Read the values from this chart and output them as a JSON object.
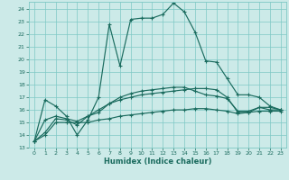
{
  "xlabel": "Humidex (Indice chaleur)",
  "bg_color": "#cceae8",
  "grid_color": "#7ec8c5",
  "line_color": "#1a6b5e",
  "xlim": [
    -0.5,
    23.5
  ],
  "ylim": [
    13,
    24.6
  ],
  "yticks": [
    13,
    14,
    15,
    16,
    17,
    18,
    19,
    20,
    21,
    22,
    23,
    24
  ],
  "xticks": [
    0,
    1,
    2,
    3,
    4,
    5,
    6,
    7,
    8,
    9,
    10,
    11,
    12,
    13,
    14,
    15,
    16,
    17,
    18,
    19,
    20,
    21,
    22,
    23
  ],
  "line1_x": [
    0,
    1,
    2,
    3,
    4,
    5,
    6,
    7,
    8,
    9,
    10,
    11,
    12,
    13,
    14,
    15,
    16,
    17,
    18,
    19,
    20,
    21,
    22,
    23
  ],
  "line1_y": [
    13.5,
    16.8,
    16.3,
    15.5,
    14.0,
    15.2,
    17.0,
    22.8,
    19.5,
    23.2,
    23.3,
    23.3,
    23.6,
    24.5,
    23.8,
    22.2,
    19.9,
    19.8,
    18.5,
    17.2,
    17.2,
    17.0,
    16.3,
    16.0
  ],
  "line2_x": [
    0,
    1,
    2,
    3,
    4,
    5,
    6,
    7,
    8,
    9,
    10,
    11,
    12,
    13,
    14,
    15,
    16,
    17,
    18,
    19,
    20,
    21,
    22,
    23
  ],
  "line2_y": [
    13.5,
    15.2,
    15.5,
    15.3,
    15.1,
    15.5,
    16.0,
    16.5,
    16.8,
    17.0,
    17.2,
    17.3,
    17.4,
    17.5,
    17.6,
    17.7,
    17.7,
    17.6,
    17.0,
    15.8,
    15.8,
    16.2,
    16.0,
    16.0
  ],
  "line3_x": [
    0,
    1,
    2,
    3,
    4,
    5,
    6,
    7,
    8,
    9,
    10,
    11,
    12,
    13,
    14,
    15,
    16,
    17,
    18,
    19,
    20,
    21,
    22,
    23
  ],
  "line3_y": [
    13.5,
    14.2,
    15.3,
    15.2,
    14.8,
    15.5,
    15.8,
    16.5,
    17.0,
    17.3,
    17.5,
    17.6,
    17.7,
    17.8,
    17.8,
    17.5,
    17.2,
    17.1,
    16.9,
    15.9,
    15.9,
    16.2,
    16.2,
    16.0
  ],
  "line4_x": [
    0,
    1,
    2,
    3,
    4,
    5,
    6,
    7,
    8,
    9,
    10,
    11,
    12,
    13,
    14,
    15,
    16,
    17,
    18,
    19,
    20,
    21,
    22,
    23
  ],
  "line4_y": [
    13.5,
    14.0,
    15.0,
    15.0,
    15.0,
    15.0,
    15.2,
    15.3,
    15.5,
    15.6,
    15.7,
    15.8,
    15.9,
    16.0,
    16.0,
    16.1,
    16.1,
    16.0,
    15.9,
    15.7,
    15.8,
    15.9,
    15.9,
    15.9
  ]
}
